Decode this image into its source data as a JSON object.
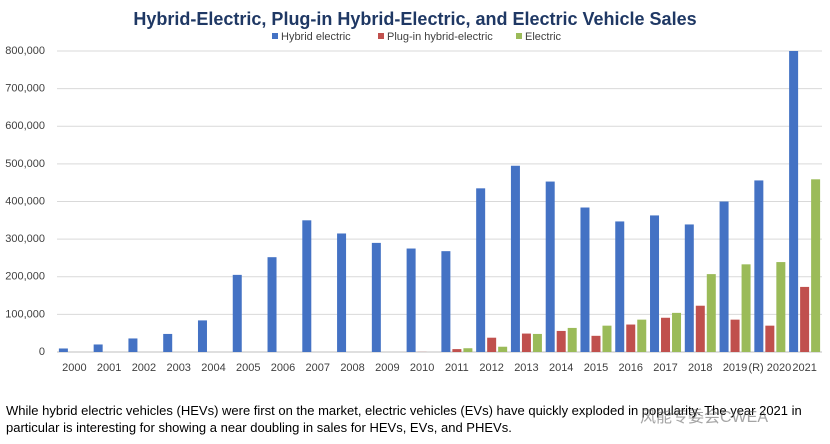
{
  "chart_data": {
    "type": "bar",
    "title": "Hybrid-Electric, Plug-in Hybrid-Electric, and Electric Vehicle Sales",
    "categories": [
      "2000",
      "2001",
      "2002",
      "2003",
      "2004",
      "2005",
      "2006",
      "2007",
      "2008",
      "2009",
      "2010",
      "2011",
      "2012",
      "2013",
      "2014",
      "2015",
      "2016",
      "2017",
      "2018",
      "2019",
      "(R) 2020",
      "2021"
    ],
    "series": [
      {
        "name": "Hybrid electric",
        "color": "#4472c4",
        "values": [
          9350,
          20000,
          36000,
          48000,
          84000,
          205000,
          252000,
          350000,
          315000,
          290000,
          275000,
          268000,
          435000,
          495000,
          453000,
          384000,
          347000,
          363000,
          339000,
          400000,
          456000,
          800000
        ]
      },
      {
        "name": "Plug-in hybrid-electric",
        "color": "#c0504d",
        "values": [
          0,
          0,
          0,
          0,
          0,
          0,
          0,
          0,
          0,
          0,
          300,
          7700,
          38000,
          49000,
          56000,
          43000,
          73000,
          91000,
          123000,
          86000,
          70000,
          173000
        ]
      },
      {
        "name": "Electric",
        "color": "#9bbb59",
        "values": [
          0,
          0,
          0,
          0,
          0,
          0,
          0,
          0,
          0,
          0,
          0,
          10000,
          14000,
          48000,
          64000,
          70000,
          86000,
          104000,
          207000,
          233000,
          239000,
          459000
        ]
      }
    ],
    "ylim": [
      0,
      800000
    ],
    "yticks": [
      0,
      {
        "value": 100000,
        "label": "100,000"
      },
      {
        "value": 200000,
        "label": "200,000"
      },
      {
        "value": 300000,
        "label": "300,000"
      },
      {
        "value": 400000,
        "label": "400,000"
      },
      {
        "value": 500000,
        "label": "500,000"
      },
      {
        "value": 600000,
        "label": "600,000"
      },
      {
        "value": 700000,
        "label": "700,000"
      },
      {
        "value": 800000,
        "label": "800,000"
      }
    ],
    "grid": true,
    "legend": "top",
    "caption": "While hybrid electric vehicles (HEVs) were first on the market, electric vehicles (EVs) have quickly exploded in popularity. The year 2021 in particular is interesting for showing a near doubling in sales for HEVs, EVs, and PHEVs.",
    "watermark": "风能专委会CWEA"
  }
}
